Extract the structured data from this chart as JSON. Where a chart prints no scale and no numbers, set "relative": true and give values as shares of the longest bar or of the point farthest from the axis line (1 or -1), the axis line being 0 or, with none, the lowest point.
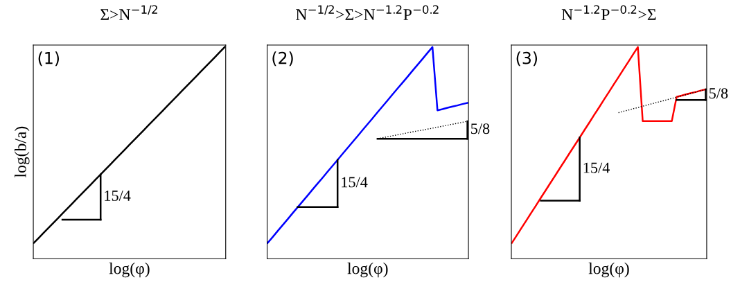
{
  "chart_data": [
    {
      "type": "line",
      "title": "Σ>N$^{−1/2}$",
      "xlabel": "log(φ)",
      "ylabel": "log(b/a)",
      "relative": true,
      "tick_labels": false,
      "categories": [
        null,
        null,
        null,
        null,
        null,
        null,
        null,
        null,
        null,
        null,
        null,
        null,
        null,
        null,
        null,
        null,
        null,
        null,
        null,
        null,
        null,
        null,
        null,
        null,
        null,
        null,
        null,
        null,
        null,
        null,
        null,
        null,
        null,
        null,
        null,
        null,
        null,
        null,
        null,
        null,
        null
      ],
      "annotations": [
        "(1)",
        "15/4"
      ],
      "series": [
        {
          "color": "#000000",
          "values": [
            0,
            0.025,
            0.05,
            0.075,
            0.1,
            0.125,
            0.15,
            0.175,
            0.2,
            0.225,
            0.25,
            0.275,
            0.3,
            0.325,
            0.35,
            0.375,
            0.4,
            0.425,
            0.45,
            0.475,
            0.5,
            0.525,
            0.55,
            0.575,
            0.6,
            0.625,
            0.65,
            0.675,
            0.7,
            0.725,
            0.75,
            0.775,
            0.8,
            0.825,
            0.85,
            0.875,
            0.9,
            0.925,
            0.95,
            0.975,
            1
          ]
        },
        {
          "color": "#000000",
          "values": [
            null,
            null,
            null,
            null,
            null,
            null,
            0.119,
            0.119,
            0.119,
            0.119,
            0.119,
            0.119,
            0.119,
            0.119,
            0.119,
            null,
            null,
            null,
            null,
            null,
            null,
            null,
            null,
            null,
            null,
            null,
            null,
            null,
            null,
            null,
            null,
            null,
            null,
            null,
            null,
            null,
            null,
            null,
            null,
            null,
            null
          ]
        }
      ]
    },
    {
      "type": "line",
      "title": "N$^{−1/2}$>Σ>N$^{−1.2}$P$^{−0.2}$",
      "xlabel": "log(φ)",
      "relative": true,
      "tick_labels": false,
      "categories": [
        null,
        null,
        null,
        null,
        null,
        null,
        null,
        null,
        null,
        null,
        null,
        null,
        null,
        null,
        null,
        null,
        null,
        null,
        null,
        null,
        null,
        null,
        null,
        null,
        null,
        null,
        null,
        null,
        null,
        null,
        null,
        null,
        null,
        null,
        null,
        null,
        null,
        null,
        null,
        null,
        null
      ],
      "annotations": [
        "(2)",
        "15/4",
        "5/8"
      ],
      "series": [
        {
          "color": "#0000ff",
          "values": [
            0,
            0.03,
            0.061,
            0.091,
            0.121,
            0.152,
            0.182,
            0.212,
            0.242,
            0.273,
            0.303,
            0.333,
            0.364,
            0.394,
            0.424,
            0.455,
            0.485,
            0.515,
            0.545,
            0.576,
            0.606,
            0.636,
            0.667,
            0.697,
            0.727,
            0.758,
            0.788,
            0.818,
            0.848,
            0.879,
            0.909,
            0.939,
            0.97,
            1,
            0.677,
            0.683,
            0.69,
            0.696,
            0.702,
            0.709,
            0.715
          ]
        },
        {
          "color": "#000000",
          "values": [
            null,
            null,
            null,
            null,
            null,
            null,
            0.183,
            0.183,
            0.183,
            0.183,
            0.183,
            0.183,
            0.183,
            0.183,
            0.183,
            null,
            null,
            null,
            null,
            null,
            null,
            null,
            null,
            null,
            null,
            null,
            null,
            null,
            null,
            null,
            null,
            null,
            null,
            null,
            null,
            null,
            null,
            null,
            null,
            null,
            null
          ]
        },
        {
          "color": "#000000",
          "line_style": "dotted",
          "values": [
            null,
            null,
            null,
            null,
            null,
            null,
            null,
            null,
            null,
            null,
            null,
            null,
            null,
            null,
            null,
            null,
            null,
            null,
            null,
            null,
            null,
            null,
            0.532,
            0.537,
            0.542,
            0.547,
            0.552,
            0.557,
            0.562,
            0.567,
            0.572,
            0.576,
            0.581,
            0.586,
            0.591,
            0.596,
            0.601,
            0.606,
            0.611,
            0.616,
            0.621
          ]
        },
        {
          "color": "#000000",
          "values": [
            null,
            null,
            null,
            null,
            null,
            null,
            null,
            null,
            null,
            null,
            null,
            null,
            null,
            null,
            null,
            null,
            null,
            null,
            null,
            null,
            null,
            null,
            0.532,
            0.532,
            0.532,
            0.532,
            0.532,
            0.532,
            0.532,
            0.532,
            0.532,
            0.532,
            0.532,
            0.532,
            0.532,
            0.532,
            0.532,
            0.532,
            0.532,
            0.532,
            0.532
          ]
        }
      ]
    },
    {
      "type": "line",
      "title": "N$^{−1.2}$P$^{−0.2}$>Σ",
      "xlabel": "log(φ)",
      "relative": true,
      "tick_labels": false,
      "categories": [
        null,
        null,
        null,
        null,
        null,
        null,
        null,
        null,
        null,
        null,
        null,
        null,
        null,
        null,
        null,
        null,
        null,
        null,
        null,
        null,
        null,
        null,
        null,
        null,
        null,
        null,
        null,
        null,
        null,
        null,
        null,
        null,
        null,
        null,
        null,
        null,
        null,
        null,
        null,
        null,
        null
      ],
      "annotations": [
        "(3)",
        "15/4",
        "5/8"
      ],
      "series": [
        {
          "color": "#ff0000",
          "values": [
            0,
            0.038,
            0.077,
            0.115,
            0.154,
            0.192,
            0.231,
            0.269,
            0.308,
            0.346,
            0.385,
            0.423,
            0.462,
            0.5,
            0.538,
            0.577,
            0.615,
            0.654,
            0.692,
            0.731,
            0.769,
            0.808,
            0.846,
            0.885,
            0.923,
            0.962,
            1,
            0.622,
            0.622,
            0.622,
            0.622,
            0.622,
            0.622,
            0.622,
            0.746,
            0.752,
            0.759,
            0.765,
            0.771,
            0.778,
            0.784
          ]
        },
        {
          "color": "#000000",
          "values": [
            null,
            null,
            null,
            null,
            null,
            null,
            0.216,
            0.216,
            0.216,
            0.216,
            0.216,
            0.216,
            0.216,
            0.216,
            0.216,
            null,
            null,
            null,
            null,
            null,
            null,
            null,
            null,
            null,
            null,
            null,
            null,
            null,
            null,
            null,
            null,
            null,
            null,
            null,
            null,
            null,
            null,
            null,
            null,
            null,
            null
          ]
        },
        {
          "color": "#000000",
          "line_style": "dotted",
          "values": [
            null,
            null,
            null,
            null,
            null,
            null,
            null,
            null,
            null,
            null,
            null,
            null,
            null,
            null,
            null,
            null,
            null,
            null,
            null,
            null,
            null,
            null,
            0.665,
            0.672,
            0.678,
            0.685,
            0.691,
            0.698,
            0.705,
            0.711,
            0.718,
            0.724,
            0.731,
            0.738,
            0.744,
            0.751,
            0.757,
            0.764,
            0.771,
            0.777,
            0.784
          ]
        },
        {
          "color": "#000000",
          "values": [
            null,
            null,
            null,
            null,
            null,
            null,
            null,
            null,
            null,
            null,
            null,
            null,
            null,
            null,
            null,
            null,
            null,
            null,
            null,
            null,
            null,
            null,
            null,
            null,
            null,
            null,
            null,
            null,
            null,
            null,
            null,
            null,
            null,
            null,
            0.73,
            0.73,
            0.73,
            0.73,
            0.73,
            0.73,
            0.73
          ]
        }
      ]
    }
  ]
}
